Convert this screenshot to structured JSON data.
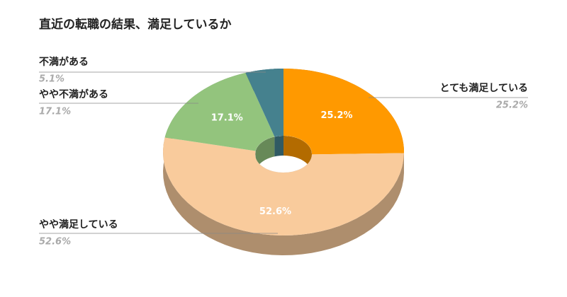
{
  "chart_data": {
    "type": "donut3d",
    "title": "直近の転職の結果、満足しているか",
    "categories": [
      "とても満足している",
      "やや満足している",
      "やや不満がある",
      "不満がある"
    ],
    "values": [
      25.2,
      52.6,
      17.1,
      5.1
    ],
    "value_labels": [
      "25.2%",
      "52.6%",
      "17.1%",
      "5.1%"
    ],
    "colors": [
      "#FF9900",
      "#F9CB9C",
      "#93C47D",
      "#45818E"
    ]
  }
}
